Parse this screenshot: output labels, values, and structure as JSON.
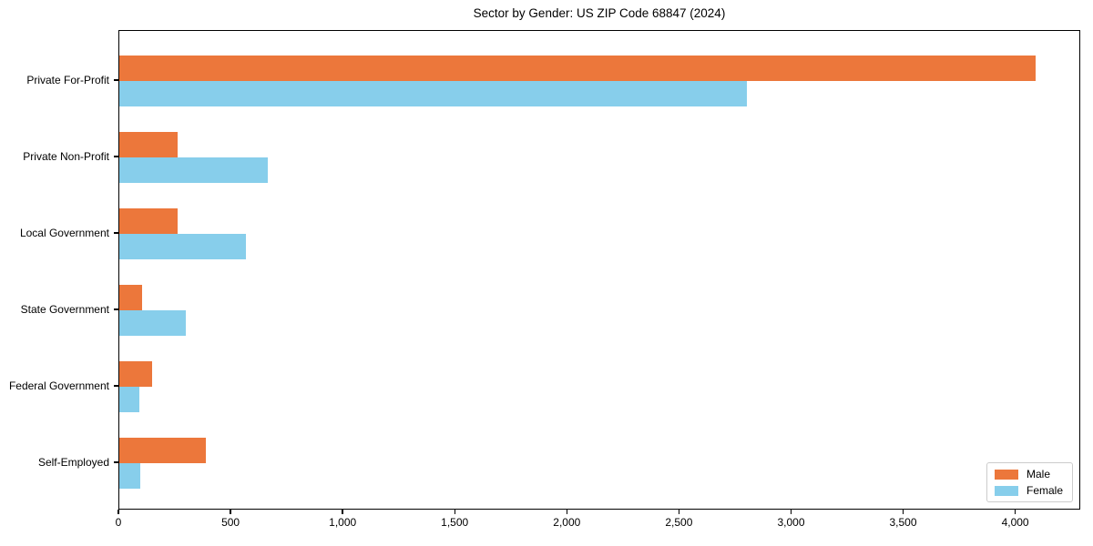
{
  "chart_data": {
    "type": "bar",
    "orientation": "horizontal",
    "title": "Sector by Gender: US ZIP Code 68847 (2024)",
    "xlabel": "",
    "ylabel": "",
    "categories": [
      "Private For-Profit",
      "Private Non-Profit",
      "Local Government",
      "State Government",
      "Federal Government",
      "Self-Employed"
    ],
    "series": [
      {
        "name": "Male",
        "color": "#EC773B",
        "values": [
          4085,
          260,
          260,
          100,
          145,
          385
        ]
      },
      {
        "name": "Female",
        "color": "#87CEEB",
        "values": [
          2800,
          660,
          565,
          295,
          90,
          95
        ]
      }
    ],
    "xlim": [
      0,
      4290
    ],
    "xticks": [
      0,
      500,
      1000,
      1500,
      2000,
      2500,
      3000,
      3500,
      4000
    ],
    "xtick_labels": [
      "0",
      "500",
      "1,000",
      "1,500",
      "2,000",
      "2,500",
      "3,000",
      "3,500",
      "4,000"
    ],
    "grid": false,
    "legend_position": "lower right"
  },
  "legend": {
    "items": [
      {
        "label": "Male"
      },
      {
        "label": "Female"
      }
    ]
  }
}
